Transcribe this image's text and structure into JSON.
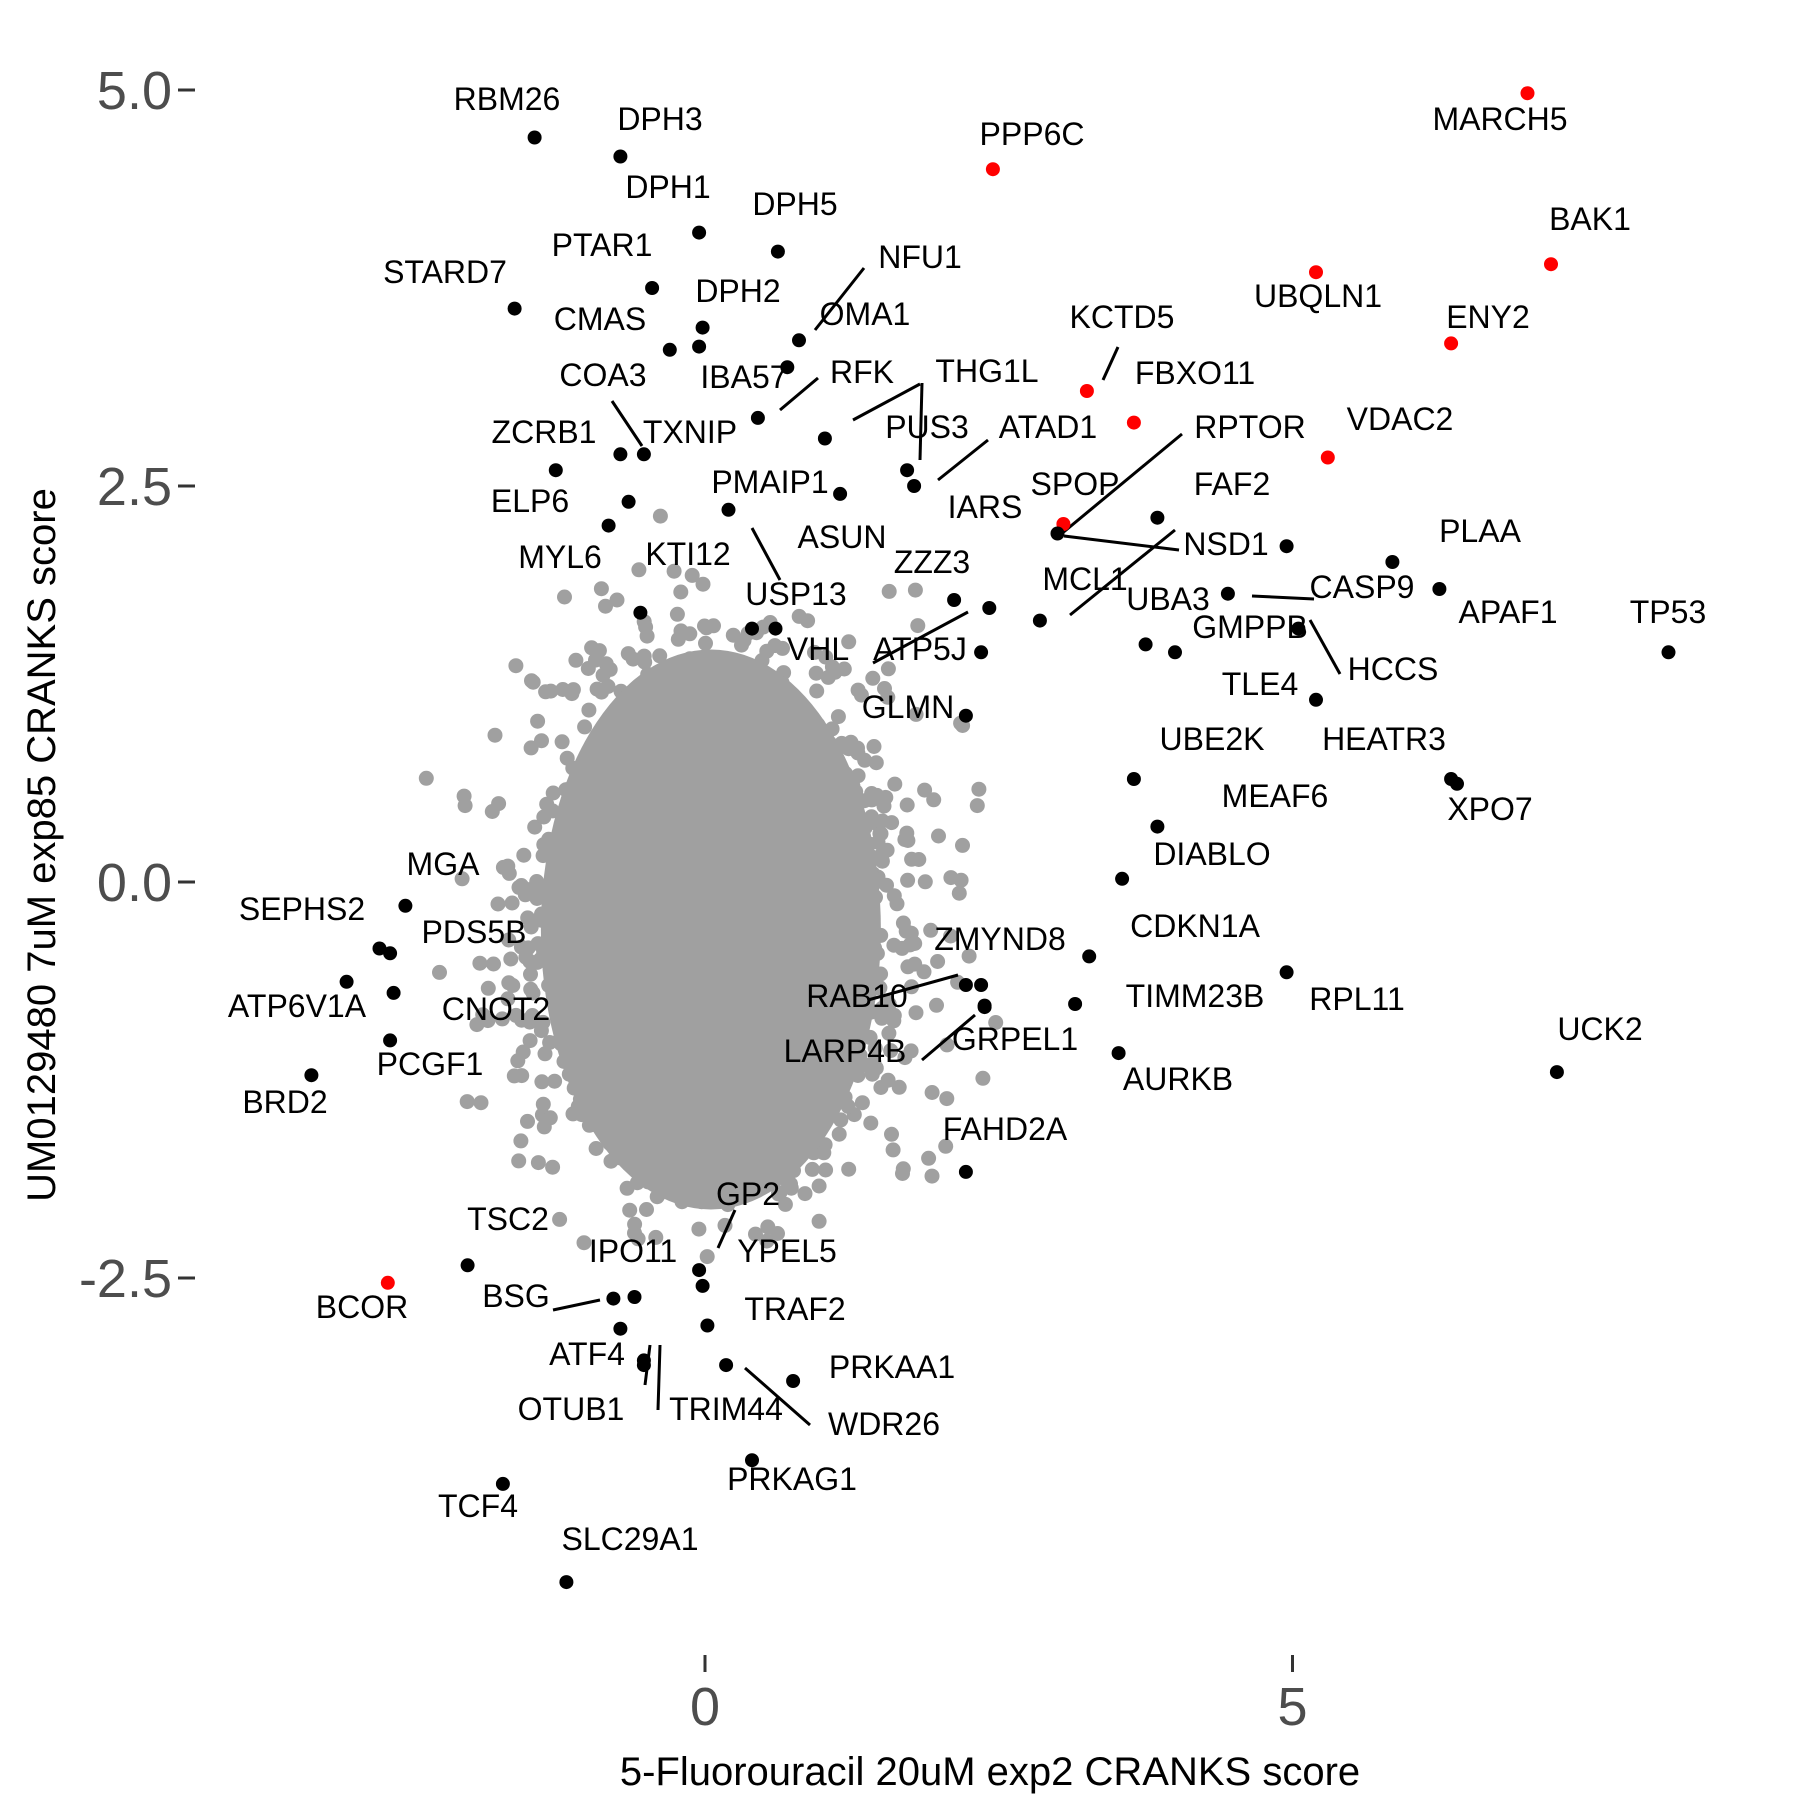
{
  "chart_data": {
    "type": "scatter",
    "title": "",
    "xlabel": "5-Fluorouracil 20uM exp2 CRANKS score",
    "ylabel": "UM0129480 7uM exp85 CRANKS score",
    "xlim": [
      -4.45,
      8.45
    ],
    "ylim": [
      -4.87,
      5.33
    ],
    "xticks": [
      0,
      5
    ],
    "xtick_labels": [
      "0",
      "5"
    ],
    "yticks": [
      5.0,
      2.5,
      0.0,
      -2.5
    ],
    "ytick_labels": [
      "5.0",
      "2.5",
      "0.0",
      "-2.5"
    ],
    "grid": false,
    "legend": "none",
    "colors": {
      "background": "#2b2b2b"
    },
    "series": [
      {
        "color": "#ff0000",
        "points": [
          {
            "label": "MARCH5",
            "x": 7.0,
            "y": 4.98
          },
          {
            "label": "BAK1",
            "x": 7.2,
            "y": 3.9
          },
          {
            "label": "PPP6C",
            "x": 2.45,
            "y": 4.5
          },
          {
            "label": "UBQLN1",
            "x": 5.2,
            "y": 3.85
          },
          {
            "label": "ENY2",
            "x": 6.35,
            "y": 3.4
          },
          {
            "label": "KCTD5",
            "x": 3.25,
            "y": 3.1
          },
          {
            "label": "FBXO11",
            "x": 3.65,
            "y": 2.9
          },
          {
            "label": "VDAC2",
            "x": 5.3,
            "y": 2.68
          },
          {
            "label": "SPOP",
            "x": 3.05,
            "y": 2.26
          },
          {
            "label": "BCOR",
            "x": -2.7,
            "y": -2.53
          }
        ]
      },
      {
        "color": "#000000",
        "points": [
          {
            "label": "RBM26",
            "x": -1.45,
            "y": 4.7
          },
          {
            "label": "DPH3",
            "x": -0.72,
            "y": 4.58
          },
          {
            "label": "DPH1",
            "x": -0.05,
            "y": 4.1
          },
          {
            "label": "DPH5",
            "x": 0.62,
            "y": 3.98
          },
          {
            "label": "PTAR1",
            "x": -0.45,
            "y": 3.75
          },
          {
            "label": "STARD7",
            "x": -1.62,
            "y": 3.62
          },
          {
            "label": "DPH2",
            "x": -0.02,
            "y": 3.5
          },
          {
            "label": "NFU1",
            "x": 0.8,
            "y": 3.42
          },
          {
            "label": "CMAS",
            "x": -0.3,
            "y": 3.36
          },
          {
            "label": "IBA57",
            "x": -0.05,
            "y": 3.38
          },
          {
            "label": "OMA1",
            "x": 0.7,
            "y": 3.25
          },
          {
            "label": "RFK",
            "x": 0.45,
            "y": 2.93
          },
          {
            "label": "COA3",
            "x": -0.72,
            "y": 2.7
          },
          {
            "label": "TXNIP",
            "x": -0.52,
            "y": 2.7
          },
          {
            "label": "THG1L",
            "x": 1.72,
            "y": 2.6
          },
          {
            "label": "PUS3",
            "x": 1.78,
            "y": 2.5
          },
          {
            "label": "ZCRB1",
            "x": -1.27,
            "y": 2.6
          },
          {
            "label": "ELP6",
            "x": -0.65,
            "y": 2.4
          },
          {
            "label": "PMAIP1",
            "x": 0.2,
            "y": 2.35
          },
          {
            "label": "IARS",
            "x": 1.15,
            "y": 2.45
          },
          {
            "label": "ATAD1",
            "x": 1.02,
            "y": 2.8
          },
          {
            "label": "RPTOR",
            "x": 3.0,
            "y": 2.2
          },
          {
            "label": "FAF2",
            "x": 3.85,
            "y": 2.3
          },
          {
            "label": "NSD1",
            "x": 4.95,
            "y": 2.12
          },
          {
            "label": "PLAA",
            "x": 5.85,
            "y": 2.02
          },
          {
            "label": "APAF1",
            "x": 6.25,
            "y": 1.85
          },
          {
            "label": "MCL1",
            "x": 2.85,
            "y": 1.65
          },
          {
            "label": "CASP9",
            "x": 4.45,
            "y": 1.82
          },
          {
            "label": "GMPPB",
            "x": 5.05,
            "y": 1.6
          },
          {
            "label": "UBA3",
            "x": 3.75,
            "y": 1.5
          },
          {
            "label": "HCCS",
            "x": 4.0,
            "y": 1.45
          },
          {
            "label": "TLE4",
            "x": 5.2,
            "y": 1.15
          },
          {
            "label": "TP53",
            "x": 8.2,
            "y": 1.45
          },
          {
            "label": "ZZZ3",
            "x": 2.12,
            "y": 1.78
          },
          {
            "label": "ASUN",
            "x": 0.6,
            "y": 1.6
          },
          {
            "label": "KTI12",
            "x": -0.55,
            "y": 1.7
          },
          {
            "label": "USP13",
            "x": 0.4,
            "y": 1.6
          },
          {
            "label": "ATP5J",
            "x": 2.42,
            "y": 1.73
          },
          {
            "label": "VHL",
            "x": 2.35,
            "y": 1.45
          },
          {
            "label": "GLMN",
            "x": 2.22,
            "y": 1.05
          },
          {
            "label": "UBE2K",
            "x": 3.65,
            "y": 0.65
          },
          {
            "label": "HEATR3",
            "x": 6.35,
            "y": 0.65
          },
          {
            "label": "MEAF6",
            "x": 3.85,
            "y": 0.35
          },
          {
            "label": "XPO7",
            "x": 6.4,
            "y": 0.62
          },
          {
            "label": "DIABLO",
            "x": 3.55,
            "y": 0.02
          },
          {
            "label": "MGA",
            "x": -2.55,
            "y": -0.15
          },
          {
            "label": "SEPHS2",
            "x": -2.77,
            "y": -0.42
          },
          {
            "label": "PDS5B",
            "x": -2.68,
            "y": -0.45
          },
          {
            "label": "CDKN1A",
            "x": 3.27,
            "y": -0.47
          },
          {
            "label": "RPL11",
            "x": 4.95,
            "y": -0.57
          },
          {
            "label": "ZMYND8",
            "x": 2.22,
            "y": -0.65
          },
          {
            "label": "RAB10",
            "x": 2.35,
            "y": -0.65
          },
          {
            "label": "TIMM23B",
            "x": 3.15,
            "y": -0.77
          },
          {
            "label": "ATP6V1A",
            "x": -3.05,
            "y": -0.63
          },
          {
            "label": "CNOT2",
            "x": -2.65,
            "y": -0.7
          },
          {
            "label": "PCGF1",
            "x": -2.68,
            "y": -1.0
          },
          {
            "label": "GRPEL1",
            "x": 2.38,
            "y": -0.78
          },
          {
            "label": "LARP4B",
            "x": 2.38,
            "y": -0.79
          },
          {
            "label": "AURKB",
            "x": 3.52,
            "y": -1.08
          },
          {
            "label": "UCK2",
            "x": 7.25,
            "y": -1.2
          },
          {
            "label": "BRD2",
            "x": -3.35,
            "y": -1.22
          },
          {
            "label": "FAHD2A",
            "x": 2.22,
            "y": -1.83
          },
          {
            "label": "TSC2",
            "x": -2.02,
            "y": -2.42
          },
          {
            "label": "GP2",
            "x": -0.05,
            "y": -2.45
          },
          {
            "label": "YPEL5",
            "x": -0.02,
            "y": -2.55
          },
          {
            "label": "IPO11",
            "x": -0.78,
            "y": -2.63
          },
          {
            "label": "BSG",
            "x": -0.6,
            "y": -2.62
          },
          {
            "label": "TRAF2",
            "x": 0.02,
            "y": -2.8
          },
          {
            "label": "ATF4",
            "x": -0.72,
            "y": -2.82
          },
          {
            "label": "OTUB1",
            "x": -0.52,
            "y": -3.02
          },
          {
            "label": "TRIM44",
            "x": -0.52,
            "y": -3.05
          },
          {
            "label": "WDR26",
            "x": 0.18,
            "y": -3.05
          },
          {
            "label": "PRKAA1",
            "x": 0.75,
            "y": -3.15
          },
          {
            "label": "PRKAG1",
            "x": 0.4,
            "y": -3.65
          },
          {
            "label": "TCF4",
            "x": -1.72,
            "y": -3.8
          },
          {
            "label": "SLC29A1",
            "x": -1.18,
            "y": -4.42
          },
          {
            "label": "MYL6",
            "x": -0.82,
            "y": 2.25
          }
        ]
      }
    ]
  }
}
